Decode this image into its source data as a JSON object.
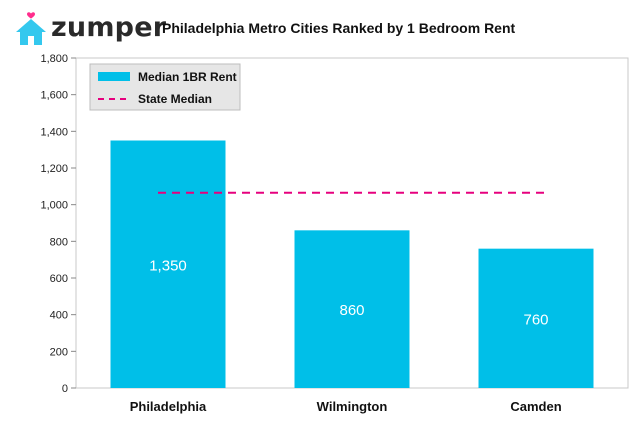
{
  "brand": {
    "name": "zumper",
    "house_color": "#34c8ee",
    "heart_color": "#ff2d8d"
  },
  "chart_data": {
    "type": "bar",
    "title": "Philadelphia Metro Cities Ranked by 1 Bedroom Rent",
    "xlabel": "",
    "ylabel": "",
    "categories": [
      "Philadelphia",
      "Wilmington",
      "Camden"
    ],
    "series": [
      {
        "name": "Median 1BR Rent",
        "values": [
          1350,
          860,
          760
        ],
        "color": "#00bfe8",
        "data_labels": [
          "1,350",
          "860",
          "760"
        ]
      }
    ],
    "reference_line": {
      "name": "State Median",
      "value": 1065,
      "color": "#e6007e",
      "style": "dashed"
    },
    "ylim": [
      0,
      1800
    ],
    "yticks": [
      0,
      200,
      400,
      600,
      800,
      1000,
      1200,
      1400,
      1600,
      1800
    ],
    "ytick_labels": [
      "0",
      "200",
      "400",
      "600",
      "800",
      "1,000",
      "1,200",
      "1,400",
      "1,600",
      "1,800"
    ],
    "legend_position": "top-left",
    "grid": false
  }
}
